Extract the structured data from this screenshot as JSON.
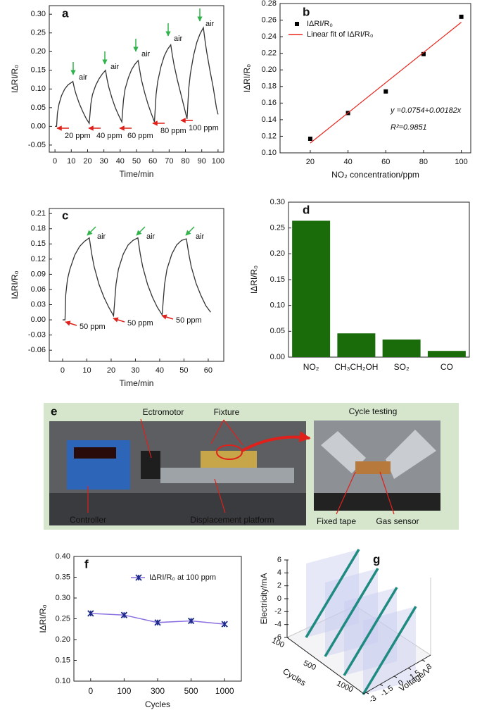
{
  "chart_data": [
    {
      "type": "line",
      "panel_label": "a",
      "xlabel": "Time/min",
      "ylabel": "IΔRI/R₀",
      "xlim": [
        -3.5,
        103.5
      ],
      "ylim": [
        -0.069,
        0.323
      ],
      "xticks": [
        0,
        10,
        20,
        30,
        40,
        50,
        60,
        70,
        80,
        90,
        100
      ],
      "yticks": [
        -0.05,
        {
          "value": 0,
          "label": "0.00"
        },
        0.05,
        {
          "value": 0.1,
          "label": "0.10"
        },
        0.15,
        {
          "value": 0.2,
          "label": "0.20"
        },
        0.25,
        {
          "value": 0.3,
          "label": "0.30"
        }
      ],
      "x": [
        0,
        1,
        1.5,
        2.5,
        4,
        6,
        8,
        11,
        12,
        13,
        15,
        17,
        19,
        21,
        22,
        23,
        25,
        27,
        29,
        31,
        32,
        33,
        35,
        37,
        39,
        41,
        42,
        43,
        45,
        47,
        49,
        51,
        52,
        53,
        55,
        57,
        59,
        61,
        62,
        63,
        65,
        67,
        69,
        71,
        72,
        73,
        75,
        77,
        79,
        81,
        82,
        83,
        85,
        87,
        89,
        91,
        92,
        93,
        95,
        97,
        99,
        100
      ],
      "series": [
        {
          "color": "#333333",
          "values": [
            0,
            0,
            0.035,
            0.06,
            0.082,
            0.1,
            0.111,
            0.12,
            0.1,
            0.085,
            0.06,
            0.04,
            0.022,
            0.008,
            0.06,
            0.085,
            0.11,
            0.127,
            0.14,
            0.15,
            0.125,
            0.105,
            0.075,
            0.05,
            0.03,
            0.012,
            0.07,
            0.1,
            0.13,
            0.152,
            0.166,
            0.176,
            0.15,
            0.125,
            0.09,
            0.06,
            0.035,
            0.012,
            0.085,
            0.12,
            0.16,
            0.188,
            0.206,
            0.218,
            0.19,
            0.165,
            0.125,
            0.09,
            0.055,
            0.02,
            0.1,
            0.14,
            0.19,
            0.225,
            0.248,
            0.264,
            0.23,
            0.2,
            0.15,
            0.105,
            0.05,
            0.032
          ]
        }
      ],
      "annotations": [
        "air",
        "air",
        "air",
        "air",
        "air",
        "20 ppm",
        "40 ppm",
        "60 ppm",
        "80 ppm",
        "100 ppm"
      ]
    },
    {
      "type": "scatter",
      "panel_label": "b",
      "xlabel": "NO₂ concentration/ppm",
      "ylabel": "IΔRI/R₀",
      "xlim": [
        4,
        105
      ],
      "ylim": [
        0.1,
        0.28
      ],
      "xticks": [
        20,
        40,
        60,
        80,
        100
      ],
      "yticks": [
        {
          "value": 0.1,
          "label": "0.10"
        },
        0.12,
        0.14,
        0.16,
        0.18,
        {
          "value": 0.2,
          "label": "0.20"
        },
        0.22,
        0.24,
        0.26,
        0.28
      ],
      "legend": "upper left",
      "x": [
        20,
        40,
        60,
        80,
        100
      ],
      "series": [
        {
          "name": "IΔRI/R₀",
          "color": "#000000",
          "values": [
            0.117,
            0.148,
            0.174,
            0.219,
            0.264
          ]
        },
        {
          "name": "Linear fit of IΔRI/R₀",
          "type": "line",
          "color": "#e8261c",
          "x": [
            20,
            100
          ],
          "values": [
            0.1118,
            0.2574
          ]
        }
      ],
      "annotations": [
        "y =0.0754+0.00182x",
        "R²=0.9851"
      ]
    },
    {
      "type": "line",
      "panel_label": "c",
      "xlabel": "Time/min",
      "ylabel": "IΔRI/R₀",
      "xlim": [
        -5.5,
        66.4
      ],
      "ylim": [
        -0.082,
        0.22
      ],
      "xticks": [
        0,
        10,
        20,
        30,
        40,
        50,
        60
      ],
      "yticks": [
        -0.06,
        -0.03,
        {
          "value": 0,
          "label": "0.00"
        },
        0.03,
        0.06,
        0.09,
        0.12,
        0.15,
        0.18,
        0.21
      ],
      "x": [
        0,
        1,
        1.3,
        2,
        3,
        5,
        7,
        9,
        11,
        12,
        13,
        15,
        17,
        19,
        21,
        22,
        23,
        25,
        27,
        29,
        31,
        32,
        33,
        35,
        37,
        39,
        41,
        42,
        43,
        45,
        47,
        49,
        51,
        52,
        53,
        55,
        57,
        59,
        61
      ],
      "series": [
        {
          "color": "#333333",
          "values": [
            0,
            0,
            0.05,
            0.08,
            0.1,
            0.128,
            0.145,
            0.155,
            0.162,
            0.13,
            0.105,
            0.07,
            0.045,
            0.025,
            0.008,
            0.07,
            0.1,
            0.13,
            0.148,
            0.157,
            0.162,
            0.13,
            0.105,
            0.07,
            0.045,
            0.025,
            0.01,
            0.07,
            0.1,
            0.13,
            0.148,
            0.157,
            0.16,
            0.13,
            0.105,
            0.072,
            0.048,
            0.028,
            0.015
          ]
        }
      ],
      "annotations": [
        "air",
        "air",
        "air",
        "50 ppm",
        "50 ppm",
        "50 ppm"
      ]
    },
    {
      "type": "bar",
      "panel_label": "d",
      "ylabel": "IΔRI/R₀",
      "categories": [
        "NO₂",
        "CH₃CH₂OH",
        "SO₂",
        "CO"
      ],
      "values": [
        0.264,
        0.046,
        0.034,
        0.012
      ],
      "color": "#1a6b0a",
      "ylim": [
        0,
        0.3
      ],
      "yticks": [
        {
          "value": 0,
          "label": "0.00"
        },
        0.05,
        {
          "value": 0.1,
          "label": "0.10"
        },
        0.15,
        {
          "value": 0.2,
          "label": "0.20"
        },
        0.25,
        {
          "value": 0.3,
          "label": "0.30"
        }
      ]
    },
    {
      "type": "line",
      "panel_label": "f",
      "xlabel": "Cycles",
      "ylabel": "IΔRI/R₀",
      "categories": [
        "0",
        "100",
        "300",
        "500",
        "1000"
      ],
      "ylim": [
        0.1,
        0.4
      ],
      "yticks": [
        {
          "value": 0.1,
          "label": "0.10"
        },
        0.15,
        {
          "value": 0.2,
          "label": "0.20"
        },
        0.25,
        {
          "value": 0.3,
          "label": "0.30"
        },
        0.35,
        {
          "value": 0.4,
          "label": "0.40"
        }
      ],
      "legend": "upper right",
      "series": [
        {
          "name": "IΔRI/R₀ at 100 ppm",
          "color": "#8a6fe0",
          "marker_color": "#1c2a8a",
          "values": [
            0.263,
            0.259,
            0.241,
            0.245,
            0.237
          ]
        }
      ]
    },
    {
      "type": "line3d",
      "panel_label": "g",
      "xlabel": "Voltage/V",
      "ylabel": "Electricity/mA",
      "zlabel": "Cycles",
      "xlim": [
        -3,
        3
      ],
      "ylim": [
        -6,
        6
      ],
      "xticks": [
        -3,
        -1.5,
        0,
        1.5,
        3
      ],
      "yticks": [
        -6,
        -4,
        -2,
        0,
        2,
        4,
        6
      ],
      "categories": [
        "100",
        "500",
        "1000"
      ],
      "x": [
        -3,
        3
      ],
      "series": [
        {
          "color": "#1f8a80",
          "values": [
            -6,
            6
          ]
        },
        {
          "color": "#1f8a80",
          "values": [
            -6,
            6
          ]
        },
        {
          "color": "#1f8a80",
          "values": [
            -6,
            6
          ]
        },
        {
          "color": "#1f8a80",
          "values": [
            -6,
            6
          ]
        }
      ]
    }
  ],
  "photo_panel": {
    "label": "e",
    "captions": [
      "Ectromotor",
      "Fixture",
      "Cycle testing",
      "Controller",
      "Displacement platform",
      "Fixed tape",
      "Gas sensor"
    ]
  }
}
